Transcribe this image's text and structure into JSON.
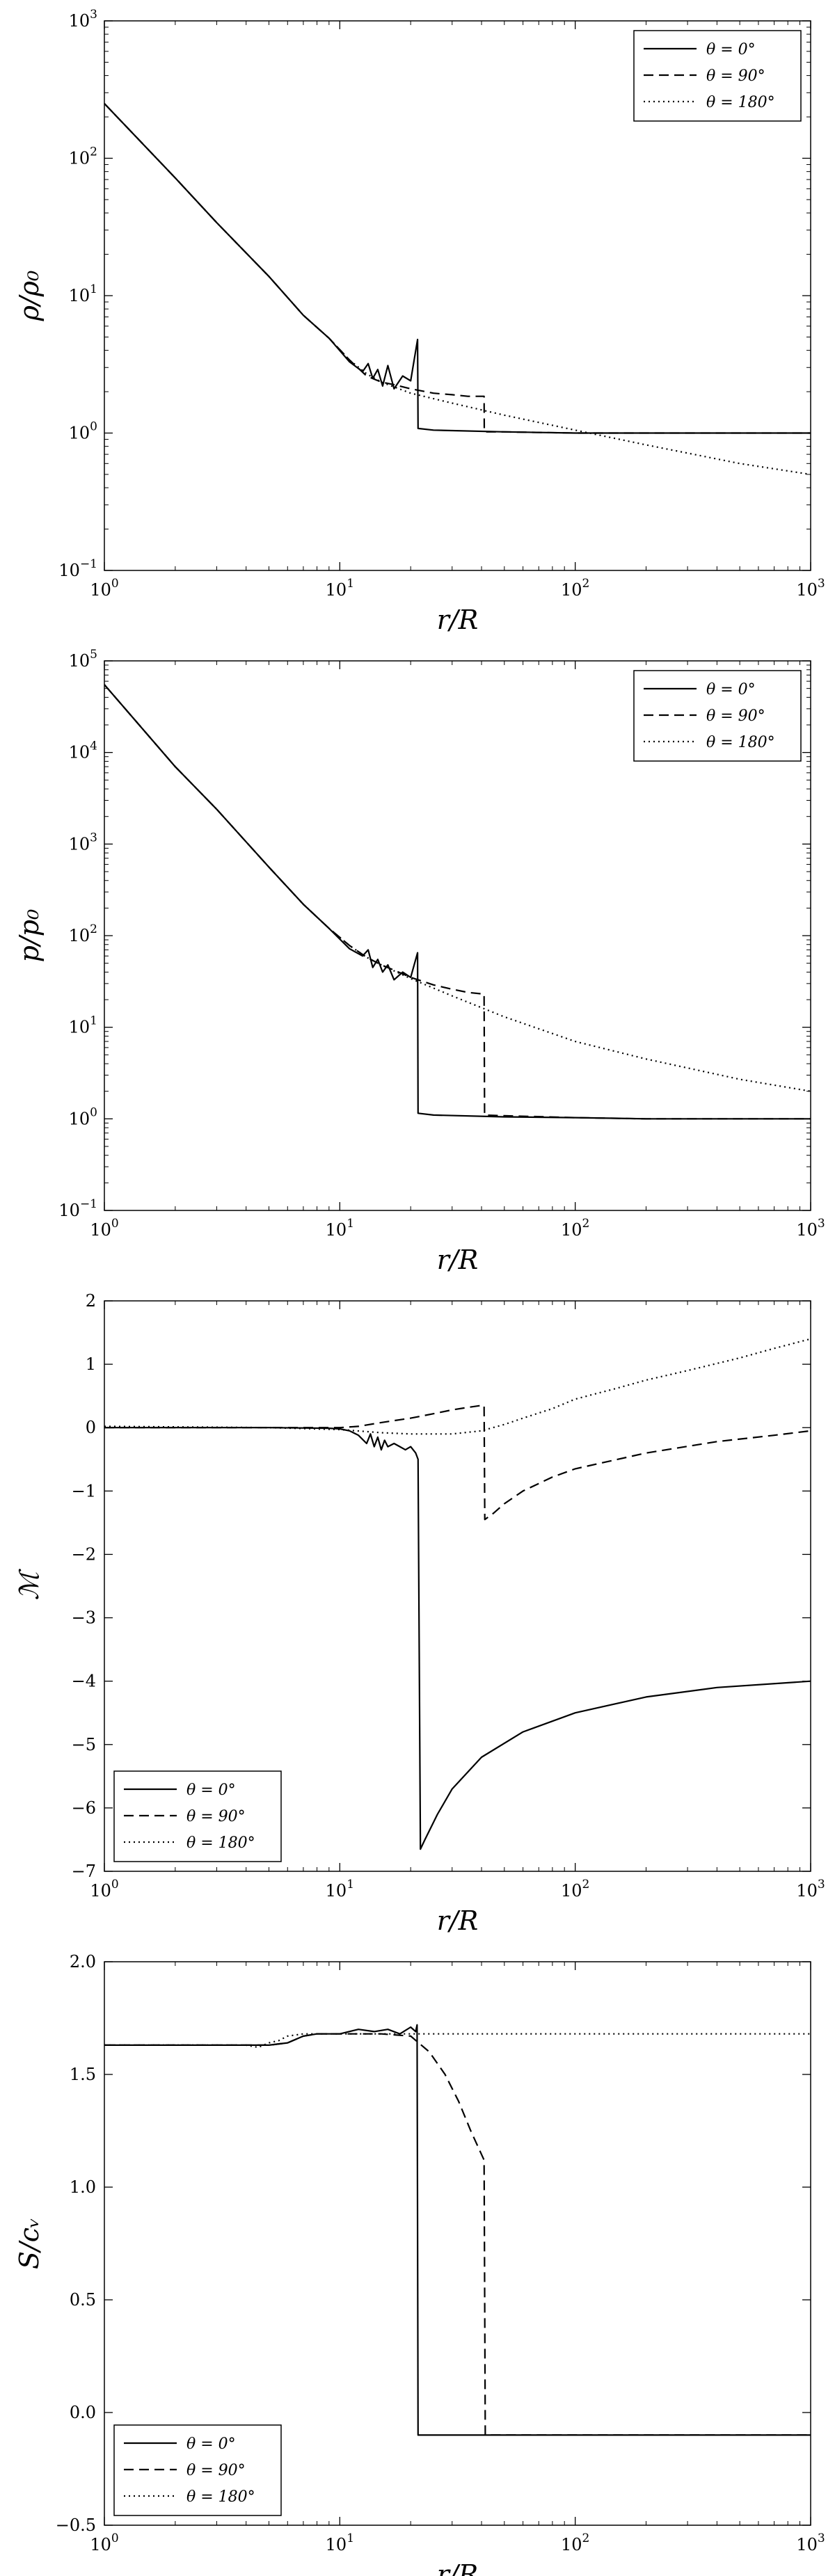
{
  "chart_data": [
    {
      "type": "line",
      "xlabel": "r/R",
      "ylabel": "ρ/ρ₀",
      "xscale": "log",
      "yscale": "log",
      "xlim": [
        1,
        1000
      ],
      "ylim": [
        0.1,
        1000
      ],
      "xticks": [
        {
          "v": 1,
          "b": "10",
          "e": "0"
        },
        {
          "v": 10,
          "b": "10",
          "e": "1"
        },
        {
          "v": 100,
          "b": "10",
          "e": "2"
        },
        {
          "v": 1000,
          "b": "10",
          "e": "3"
        }
      ],
      "yticks": [
        {
          "v": 0.1,
          "b": "10",
          "e": "−1"
        },
        {
          "v": 1,
          "b": "10",
          "e": "0"
        },
        {
          "v": 10,
          "b": "10",
          "e": "1"
        },
        {
          "v": 100,
          "b": "10",
          "e": "2"
        },
        {
          "v": 1000,
          "b": "10",
          "e": "3"
        }
      ],
      "legend_position": "top-right",
      "series": [
        {
          "name": "θ = 0°",
          "style": "solid",
          "x": [
            1,
            2,
            3,
            5,
            7,
            9,
            11,
            12.5,
            13.2,
            13.8,
            14.5,
            15.2,
            16,
            17,
            18.5,
            20,
            21.4,
            21.5,
            25,
            50,
            100,
            200,
            500,
            1000
          ],
          "y": [
            250,
            72,
            34,
            13.8,
            7.2,
            4.9,
            3.3,
            2.8,
            3.2,
            2.5,
            2.9,
            2.2,
            3.1,
            2.1,
            2.6,
            2.4,
            4.8,
            1.08,
            1.05,
            1.02,
            1.0,
            1.0,
            1.0,
            1.0
          ]
        },
        {
          "name": "θ = 90°",
          "style": "dashed",
          "x": [
            1,
            2,
            3,
            5,
            7,
            9,
            11,
            13,
            15,
            17,
            20,
            25,
            30,
            35,
            41,
            41.1,
            50,
            100,
            200,
            500,
            1000
          ],
          "y": [
            250,
            72,
            34,
            13.8,
            7.2,
            4.9,
            3.4,
            2.6,
            2.35,
            2.25,
            2.1,
            1.95,
            1.9,
            1.85,
            1.85,
            1.02,
            1.02,
            1.0,
            1.0,
            1.0,
            1.0
          ]
        },
        {
          "name": "θ = 180°",
          "style": "dotted",
          "x": [
            1,
            2,
            3,
            5,
            7,
            9,
            11,
            13,
            15,
            20,
            30,
            50,
            100,
            200,
            500,
            1000
          ],
          "y": [
            250,
            72,
            34,
            13.8,
            7.2,
            4.9,
            3.4,
            2.7,
            2.35,
            1.95,
            1.65,
            1.35,
            1.05,
            0.82,
            0.6,
            0.5
          ]
        }
      ]
    },
    {
      "type": "line",
      "xlabel": "r/R",
      "ylabel": "p/p₀",
      "xscale": "log",
      "yscale": "log",
      "xlim": [
        1,
        1000
      ],
      "ylim": [
        0.1,
        100000
      ],
      "xticks": [
        {
          "v": 1,
          "b": "10",
          "e": "0"
        },
        {
          "v": 10,
          "b": "10",
          "e": "1"
        },
        {
          "v": 100,
          "b": "10",
          "e": "2"
        },
        {
          "v": 1000,
          "b": "10",
          "e": "3"
        }
      ],
      "yticks": [
        {
          "v": 0.1,
          "b": "10",
          "e": "−1"
        },
        {
          "v": 1,
          "b": "10",
          "e": "0"
        },
        {
          "v": 10,
          "b": "10",
          "e": "1"
        },
        {
          "v": 100,
          "b": "10",
          "e": "2"
        },
        {
          "v": 1000,
          "b": "10",
          "e": "3"
        },
        {
          "v": 10000,
          "b": "10",
          "e": "4"
        },
        {
          "v": 100000,
          "b": "10",
          "e": "5"
        }
      ],
      "legend_position": "top-right",
      "series": [
        {
          "name": "θ = 0°",
          "style": "solid",
          "x": [
            1,
            2,
            3,
            5,
            7,
            9,
            11,
            12.5,
            13.2,
            13.8,
            14.5,
            15.2,
            16,
            17,
            18.5,
            20,
            21.4,
            21.5,
            25,
            50,
            100,
            200,
            500,
            1000
          ],
          "y": [
            55000,
            7000,
            2400,
            560,
            220,
            120,
            72,
            60,
            70,
            45,
            55,
            40,
            48,
            33,
            40,
            35,
            65,
            1.15,
            1.1,
            1.05,
            1.03,
            1.0,
            1.0,
            1.0
          ]
        },
        {
          "name": "θ = 90°",
          "style": "dashed",
          "x": [
            1,
            2,
            3,
            5,
            7,
            9,
            11,
            13,
            15,
            17,
            20,
            25,
            30,
            35,
            41,
            41.2,
            50,
            100,
            200,
            500,
            1000
          ],
          "y": [
            55000,
            7000,
            2400,
            560,
            220,
            120,
            78,
            58,
            48,
            42,
            35,
            29,
            26,
            24,
            23,
            1.1,
            1.08,
            1.03,
            1.0,
            1.0,
            1.0
          ]
        },
        {
          "name": "θ = 180°",
          "style": "dotted",
          "x": [
            1,
            2,
            3,
            5,
            7,
            9,
            11,
            13,
            15,
            20,
            30,
            50,
            100,
            200,
            500,
            1000
          ],
          "y": [
            55000,
            7000,
            2400,
            560,
            220,
            120,
            78,
            58,
            48,
            34,
            22,
            13,
            7.0,
            4.5,
            2.7,
            2.0
          ]
        }
      ]
    },
    {
      "type": "line",
      "xlabel": "r/R",
      "ylabel": "ℳ",
      "xscale": "log",
      "yscale": "linear",
      "xlim": [
        1,
        1000
      ],
      "ylim": [
        -7,
        2
      ],
      "xticks": [
        {
          "v": 1,
          "b": "10",
          "e": "0"
        },
        {
          "v": 10,
          "b": "10",
          "e": "1"
        },
        {
          "v": 100,
          "b": "10",
          "e": "2"
        },
        {
          "v": 1000,
          "b": "10",
          "e": "3"
        }
      ],
      "yticks": [
        {
          "v": 2,
          "t": "2"
        },
        {
          "v": 1,
          "t": "1"
        },
        {
          "v": 0,
          "t": "0"
        },
        {
          "v": -1,
          "t": "−1"
        },
        {
          "v": -2,
          "t": "−2"
        },
        {
          "v": -3,
          "t": "−3"
        },
        {
          "v": -4,
          "t": "−4"
        },
        {
          "v": -5,
          "t": "−5"
        },
        {
          "v": -6,
          "t": "−6"
        },
        {
          "v": -7,
          "t": "−7"
        }
      ],
      "legend_position": "bottom-left",
      "series": [
        {
          "name": "θ = 0°",
          "style": "solid",
          "x": [
            1,
            5,
            9,
            10,
            11,
            12,
            13,
            13.5,
            14,
            14.5,
            15,
            15.5,
            16,
            17,
            18,
            19,
            20,
            21,
            21.5,
            22,
            23,
            26,
            30,
            40,
            60,
            100,
            200,
            400,
            1000
          ],
          "y": [
            0,
            0,
            -0.01,
            -0.02,
            -0.05,
            -0.12,
            -0.25,
            -0.1,
            -0.3,
            -0.15,
            -0.35,
            -0.2,
            -0.3,
            -0.25,
            -0.3,
            -0.35,
            -0.3,
            -0.4,
            -0.5,
            -6.65,
            -6.5,
            -6.1,
            -5.7,
            -5.2,
            -4.8,
            -4.5,
            -4.25,
            -4.1,
            -4.0
          ]
        },
        {
          "name": "θ = 90°",
          "style": "dashed",
          "x": [
            1,
            5,
            10,
            12,
            15,
            20,
            25,
            30,
            35,
            40,
            41,
            41.3,
            45,
            50,
            60,
            80,
            100,
            200,
            400,
            700,
            1000
          ],
          "y": [
            0,
            0,
            0,
            0.02,
            0.08,
            0.15,
            0.22,
            0.28,
            0.32,
            0.35,
            0.35,
            -1.45,
            -1.35,
            -1.2,
            -1.0,
            -0.78,
            -0.65,
            -0.4,
            -0.22,
            -0.12,
            -0.05
          ]
        },
        {
          "name": "θ = 180°",
          "style": "dotted",
          "x": [
            1,
            5,
            10,
            15,
            20,
            30,
            40,
            50,
            60,
            80,
            100,
            150,
            200,
            300,
            500,
            700,
            1000
          ],
          "y": [
            0.02,
            0.0,
            -0.03,
            -0.08,
            -0.1,
            -0.1,
            -0.05,
            0.05,
            0.15,
            0.3,
            0.45,
            0.62,
            0.75,
            0.9,
            1.1,
            1.25,
            1.4
          ]
        }
      ]
    },
    {
      "type": "line",
      "xlabel": "r/R",
      "ylabel": "S/cᵥ",
      "xscale": "log",
      "yscale": "linear",
      "xlim": [
        1,
        1000
      ],
      "ylim": [
        -0.5,
        2.0
      ],
      "xticks": [
        {
          "v": 1,
          "b": "10",
          "e": "0"
        },
        {
          "v": 10,
          "b": "10",
          "e": "1"
        },
        {
          "v": 100,
          "b": "10",
          "e": "2"
        },
        {
          "v": 1000,
          "b": "10",
          "e": "3"
        }
      ],
      "yticks": [
        {
          "v": 2.0,
          "t": "2.0"
        },
        {
          "v": 1.5,
          "t": "1.5"
        },
        {
          "v": 1.0,
          "t": "1.0"
        },
        {
          "v": 0.5,
          "t": "0.5"
        },
        {
          "v": 0.0,
          "t": "0.0"
        },
        {
          "v": -0.5,
          "t": "−0.5"
        }
      ],
      "legend_position": "bottom-left",
      "series": [
        {
          "name": "θ = 0°",
          "style": "solid",
          "x": [
            1,
            5,
            6,
            7,
            8,
            10,
            12,
            14,
            16,
            18,
            20,
            21,
            21.3,
            21.5,
            30,
            100,
            1000
          ],
          "y": [
            1.63,
            1.63,
            1.64,
            1.67,
            1.68,
            1.68,
            1.7,
            1.69,
            1.7,
            1.68,
            1.71,
            1.69,
            1.72,
            -0.1,
            -0.1,
            -0.1,
            -0.1
          ]
        },
        {
          "name": "θ = 90°",
          "style": "dashed",
          "x": [
            1,
            5,
            6,
            7,
            8,
            10,
            15,
            20,
            24,
            28,
            32,
            36,
            41,
            41.5,
            60,
            100,
            1000
          ],
          "y": [
            1.63,
            1.63,
            1.64,
            1.67,
            1.68,
            1.68,
            1.68,
            1.67,
            1.6,
            1.5,
            1.38,
            1.25,
            1.12,
            -0.1,
            -0.1,
            -0.1,
            -0.1
          ]
        },
        {
          "name": "θ = 180°",
          "style": "dotted",
          "x": [
            1,
            4,
            4.5,
            5,
            5.5,
            6,
            7,
            10,
            20,
            50,
            100,
            200,
            500,
            1000
          ],
          "y": [
            1.63,
            1.63,
            1.62,
            1.64,
            1.65,
            1.67,
            1.68,
            1.68,
            1.68,
            1.68,
            1.68,
            1.68,
            1.68,
            1.68
          ]
        }
      ]
    }
  ]
}
